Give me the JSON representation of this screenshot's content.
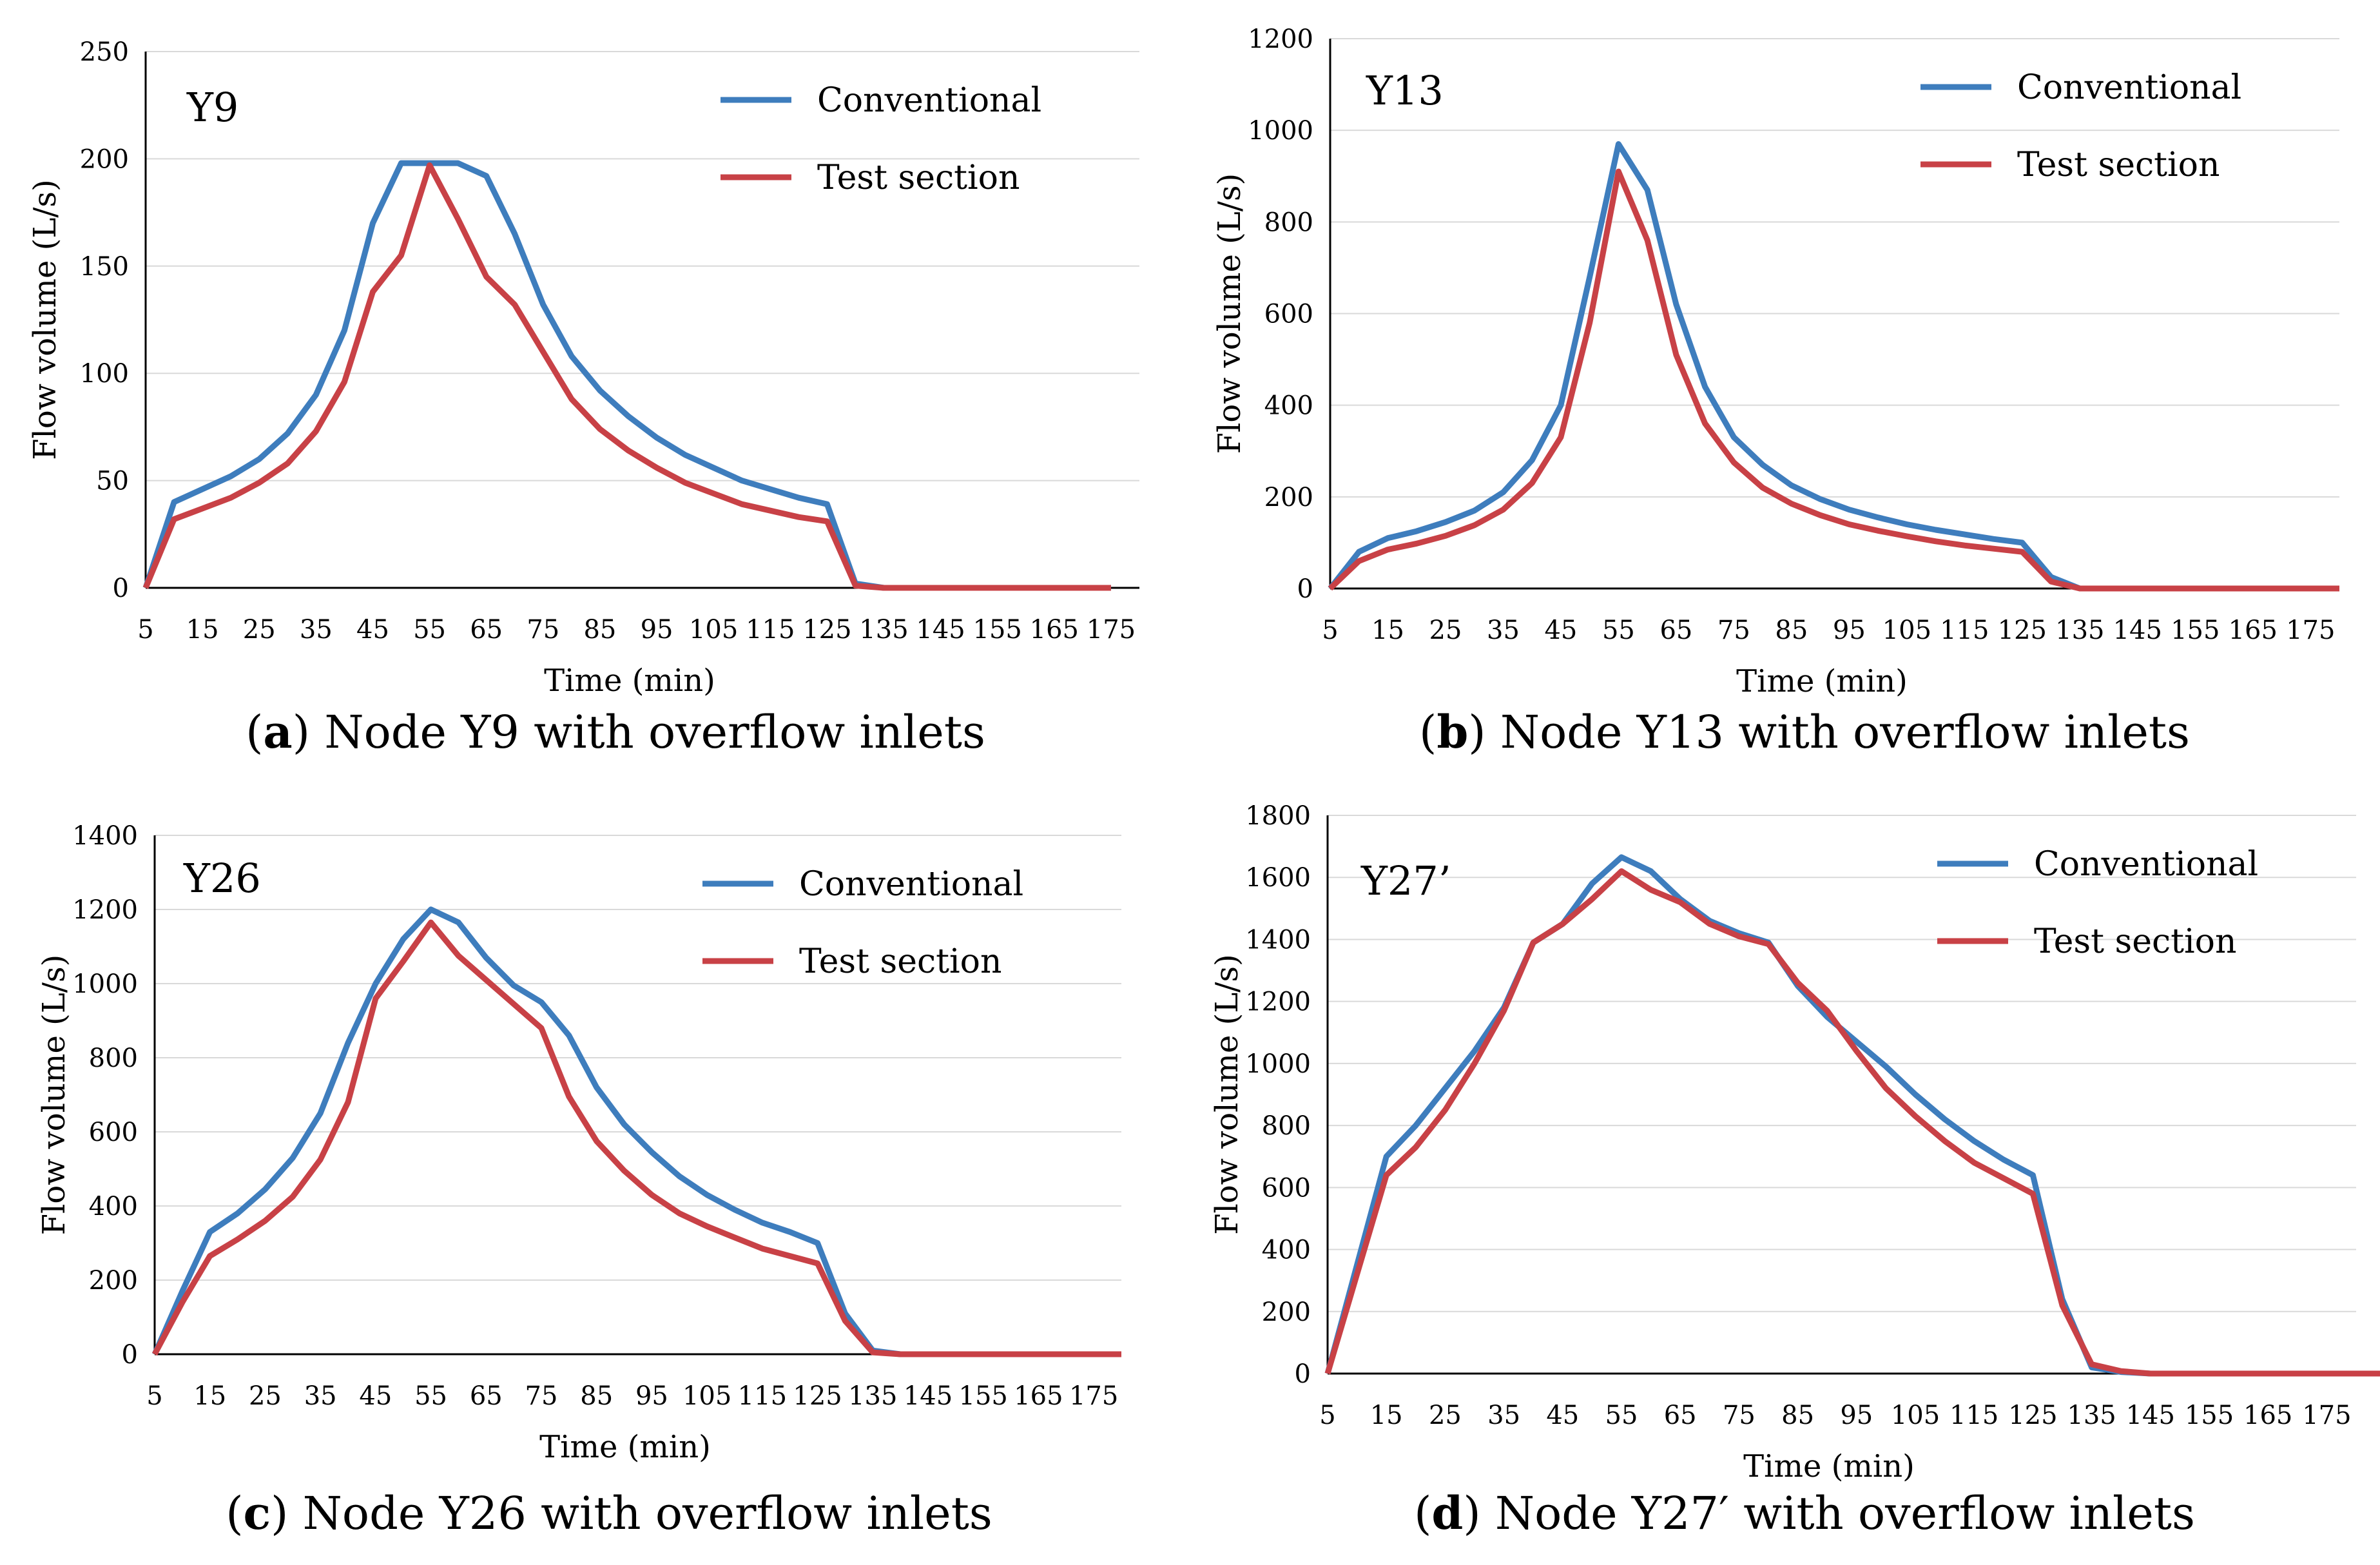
{
  "chart_data": [
    {
      "type": "line",
      "title": "Y9",
      "caption": {
        "letter": "a",
        "text": "Node Y9 with overflow inlets"
      },
      "xlabel": "Time (min)",
      "ylabel": "Flow volume (L/s)",
      "ylim": [
        0,
        250
      ],
      "yticks": [
        0,
        50,
        100,
        150,
        200,
        250
      ],
      "xticks": [
        5,
        15,
        25,
        35,
        45,
        55,
        65,
        75,
        85,
        95,
        105,
        115,
        125,
        135,
        145,
        155,
        165,
        175
      ],
      "grid": true,
      "legend_position": "top-right",
      "series": [
        {
          "name": "Conventional",
          "color": "#3e7dbd",
          "points": [
            [
              5,
              0
            ],
            [
              10,
              40
            ],
            [
              15,
              46
            ],
            [
              20,
              52
            ],
            [
              25,
              60
            ],
            [
              30,
              72
            ],
            [
              35,
              90
            ],
            [
              40,
              120
            ],
            [
              45,
              170
            ],
            [
              50,
              198
            ],
            [
              55,
              198
            ],
            [
              60,
              198
            ],
            [
              65,
              192
            ],
            [
              70,
              165
            ],
            [
              75,
              132
            ],
            [
              80,
              108
            ],
            [
              85,
              92
            ],
            [
              90,
              80
            ],
            [
              95,
              70
            ],
            [
              100,
              62
            ],
            [
              105,
              56
            ],
            [
              110,
              50
            ],
            [
              115,
              46
            ],
            [
              120,
              42
            ],
            [
              125,
              39
            ],
            [
              130,
              2
            ],
            [
              135,
              0
            ],
            [
              175,
              0
            ]
          ]
        },
        {
          "name": "Test section",
          "color": "#c84146",
          "points": [
            [
              5,
              0
            ],
            [
              10,
              32
            ],
            [
              15,
              37
            ],
            [
              20,
              42
            ],
            [
              25,
              49
            ],
            [
              30,
              58
            ],
            [
              35,
              73
            ],
            [
              40,
              96
            ],
            [
              45,
              138
            ],
            [
              50,
              155
            ],
            [
              55,
              197
            ],
            [
              60,
              172
            ],
            [
              65,
              145
            ],
            [
              70,
              132
            ],
            [
              75,
              110
            ],
            [
              80,
              88
            ],
            [
              85,
              74
            ],
            [
              90,
              64
            ],
            [
              95,
              56
            ],
            [
              100,
              49
            ],
            [
              105,
              44
            ],
            [
              110,
              39
            ],
            [
              115,
              36
            ],
            [
              120,
              33
            ],
            [
              125,
              31
            ],
            [
              130,
              1
            ],
            [
              135,
              0
            ],
            [
              175,
              0
            ]
          ]
        }
      ]
    },
    {
      "type": "line",
      "title": "Y13",
      "caption": {
        "letter": "b",
        "text": "Node Y13 with overflow inlets"
      },
      "xlabel": "Time (min)",
      "ylabel": "Flow volume (L/s)",
      "ylim": [
        0,
        1200
      ],
      "yticks": [
        0,
        200,
        400,
        600,
        800,
        1000,
        1200
      ],
      "xticks": [
        5,
        15,
        25,
        35,
        45,
        55,
        65,
        75,
        85,
        95,
        105,
        115,
        125,
        135,
        145,
        155,
        165,
        175
      ],
      "grid": true,
      "legend_position": "top-right",
      "series": [
        {
          "name": "Conventional",
          "color": "#3e7dbd",
          "points": [
            [
              5,
              0
            ],
            [
              10,
              80
            ],
            [
              15,
              110
            ],
            [
              20,
              125
            ],
            [
              25,
              145
            ],
            [
              30,
              170
            ],
            [
              35,
              210
            ],
            [
              40,
              280
            ],
            [
              45,
              400
            ],
            [
              50,
              680
            ],
            [
              55,
              970
            ],
            [
              60,
              870
            ],
            [
              65,
              620
            ],
            [
              70,
              440
            ],
            [
              75,
              330
            ],
            [
              80,
              270
            ],
            [
              85,
              225
            ],
            [
              90,
              195
            ],
            [
              95,
              172
            ],
            [
              100,
              155
            ],
            [
              105,
              140
            ],
            [
              110,
              128
            ],
            [
              115,
              118
            ],
            [
              120,
              108
            ],
            [
              125,
              100
            ],
            [
              130,
              25
            ],
            [
              135,
              0
            ],
            [
              180,
              0
            ]
          ]
        },
        {
          "name": "Test section",
          "color": "#c84146",
          "points": [
            [
              5,
              0
            ],
            [
              10,
              60
            ],
            [
              15,
              85
            ],
            [
              20,
              98
            ],
            [
              25,
              115
            ],
            [
              30,
              138
            ],
            [
              35,
              172
            ],
            [
              40,
              230
            ],
            [
              45,
              330
            ],
            [
              50,
              580
            ],
            [
              55,
              910
            ],
            [
              60,
              760
            ],
            [
              65,
              510
            ],
            [
              70,
              360
            ],
            [
              75,
              275
            ],
            [
              80,
              220
            ],
            [
              85,
              185
            ],
            [
              90,
              160
            ],
            [
              95,
              140
            ],
            [
              100,
              126
            ],
            [
              105,
              114
            ],
            [
              110,
              103
            ],
            [
              115,
              94
            ],
            [
              120,
              87
            ],
            [
              125,
              80
            ],
            [
              130,
              15
            ],
            [
              135,
              0
            ],
            [
              180,
              0
            ]
          ]
        }
      ]
    },
    {
      "type": "line",
      "title": "Y26",
      "caption": {
        "letter": "c",
        "text": "Node Y26 with overflow inlets"
      },
      "xlabel": "Time (min)",
      "ylabel": "Flow volume (L/s)",
      "ylim": [
        0,
        1400
      ],
      "yticks": [
        0,
        200,
        400,
        600,
        800,
        1000,
        1200,
        1400
      ],
      "xticks": [
        5,
        15,
        25,
        35,
        45,
        55,
        65,
        75,
        85,
        95,
        105,
        115,
        125,
        135,
        145,
        155,
        165,
        175
      ],
      "grid": true,
      "legend_position": "top-right",
      "series": [
        {
          "name": "Conventional",
          "color": "#3e7dbd",
          "points": [
            [
              5,
              0
            ],
            [
              10,
              170
            ],
            [
              15,
              330
            ],
            [
              20,
              380
            ],
            [
              25,
              445
            ],
            [
              30,
              530
            ],
            [
              35,
              650
            ],
            [
              40,
              840
            ],
            [
              45,
              1000
            ],
            [
              50,
              1120
            ],
            [
              55,
              1200
            ],
            [
              60,
              1165
            ],
            [
              65,
              1070
            ],
            [
              70,
              995
            ],
            [
              75,
              950
            ],
            [
              80,
              860
            ],
            [
              85,
              720
            ],
            [
              90,
              620
            ],
            [
              95,
              545
            ],
            [
              100,
              480
            ],
            [
              105,
              430
            ],
            [
              110,
              390
            ],
            [
              115,
              355
            ],
            [
              120,
              330
            ],
            [
              125,
              300
            ],
            [
              130,
              110
            ],
            [
              135,
              10
            ],
            [
              140,
              0
            ],
            [
              180,
              0
            ]
          ]
        },
        {
          "name": "Test section",
          "color": "#c84146",
          "points": [
            [
              5,
              0
            ],
            [
              10,
              140
            ],
            [
              15,
              265
            ],
            [
              20,
              310
            ],
            [
              25,
              360
            ],
            [
              30,
              425
            ],
            [
              35,
              525
            ],
            [
              40,
              680
            ],
            [
              45,
              960
            ],
            [
              50,
              1060
            ],
            [
              55,
              1165
            ],
            [
              60,
              1075
            ],
            [
              65,
              1010
            ],
            [
              70,
              945
            ],
            [
              75,
              880
            ],
            [
              80,
              695
            ],
            [
              85,
              575
            ],
            [
              90,
              495
            ],
            [
              95,
              430
            ],
            [
              100,
              380
            ],
            [
              105,
              345
            ],
            [
              110,
              315
            ],
            [
              115,
              285
            ],
            [
              120,
              265
            ],
            [
              125,
              245
            ],
            [
              130,
              90
            ],
            [
              135,
              5
            ],
            [
              140,
              0
            ],
            [
              180,
              0
            ]
          ]
        }
      ]
    },
    {
      "type": "line",
      "title": "Y27’",
      "caption": {
        "letter": "d",
        "text": "Node Y27′ with overflow inlets"
      },
      "xlabel": "Time (min)",
      "ylabel": "Flow volume (L/s)",
      "ylim": [
        0,
        1800
      ],
      "yticks": [
        0,
        200,
        400,
        600,
        800,
        1000,
        1200,
        1400,
        1600,
        1800
      ],
      "xticks": [
        5,
        15,
        25,
        35,
        45,
        55,
        65,
        75,
        85,
        95,
        105,
        115,
        125,
        135,
        145,
        155,
        165,
        175
      ],
      "grid": true,
      "legend_position": "top-right",
      "series": [
        {
          "name": "Conventional",
          "color": "#3e7dbd",
          "points": [
            [
              5,
              0
            ],
            [
              10,
              350
            ],
            [
              15,
              700
            ],
            [
              20,
              800
            ],
            [
              25,
              920
            ],
            [
              30,
              1040
            ],
            [
              35,
              1180
            ],
            [
              40,
              1390
            ],
            [
              45,
              1450
            ],
            [
              50,
              1580
            ],
            [
              55,
              1665
            ],
            [
              60,
              1620
            ],
            [
              65,
              1530
            ],
            [
              70,
              1460
            ],
            [
              75,
              1420
            ],
            [
              80,
              1390
            ],
            [
              85,
              1250
            ],
            [
              90,
              1150
            ],
            [
              95,
              1070
            ],
            [
              100,
              990
            ],
            [
              105,
              900
            ],
            [
              110,
              820
            ],
            [
              115,
              750
            ],
            [
              120,
              690
            ],
            [
              125,
              640
            ],
            [
              130,
              240
            ],
            [
              135,
              20
            ],
            [
              140,
              5
            ],
            [
              145,
              0
            ],
            [
              185,
              0
            ]
          ]
        },
        {
          "name": "Test section",
          "color": "#c84146",
          "points": [
            [
              5,
              0
            ],
            [
              10,
              320
            ],
            [
              15,
              640
            ],
            [
              20,
              730
            ],
            [
              25,
              850
            ],
            [
              30,
              1000
            ],
            [
              35,
              1170
            ],
            [
              40,
              1390
            ],
            [
              45,
              1450
            ],
            [
              50,
              1530
            ],
            [
              55,
              1620
            ],
            [
              60,
              1560
            ],
            [
              65,
              1520
            ],
            [
              70,
              1450
            ],
            [
              75,
              1410
            ],
            [
              80,
              1385
            ],
            [
              85,
              1260
            ],
            [
              90,
              1170
            ],
            [
              95,
              1040
            ],
            [
              100,
              920
            ],
            [
              105,
              830
            ],
            [
              110,
              750
            ],
            [
              115,
              680
            ],
            [
              120,
              630
            ],
            [
              125,
              580
            ],
            [
              130,
              220
            ],
            [
              135,
              30
            ],
            [
              140,
              8
            ],
            [
              145,
              0
            ],
            [
              185,
              0
            ]
          ]
        }
      ]
    }
  ]
}
